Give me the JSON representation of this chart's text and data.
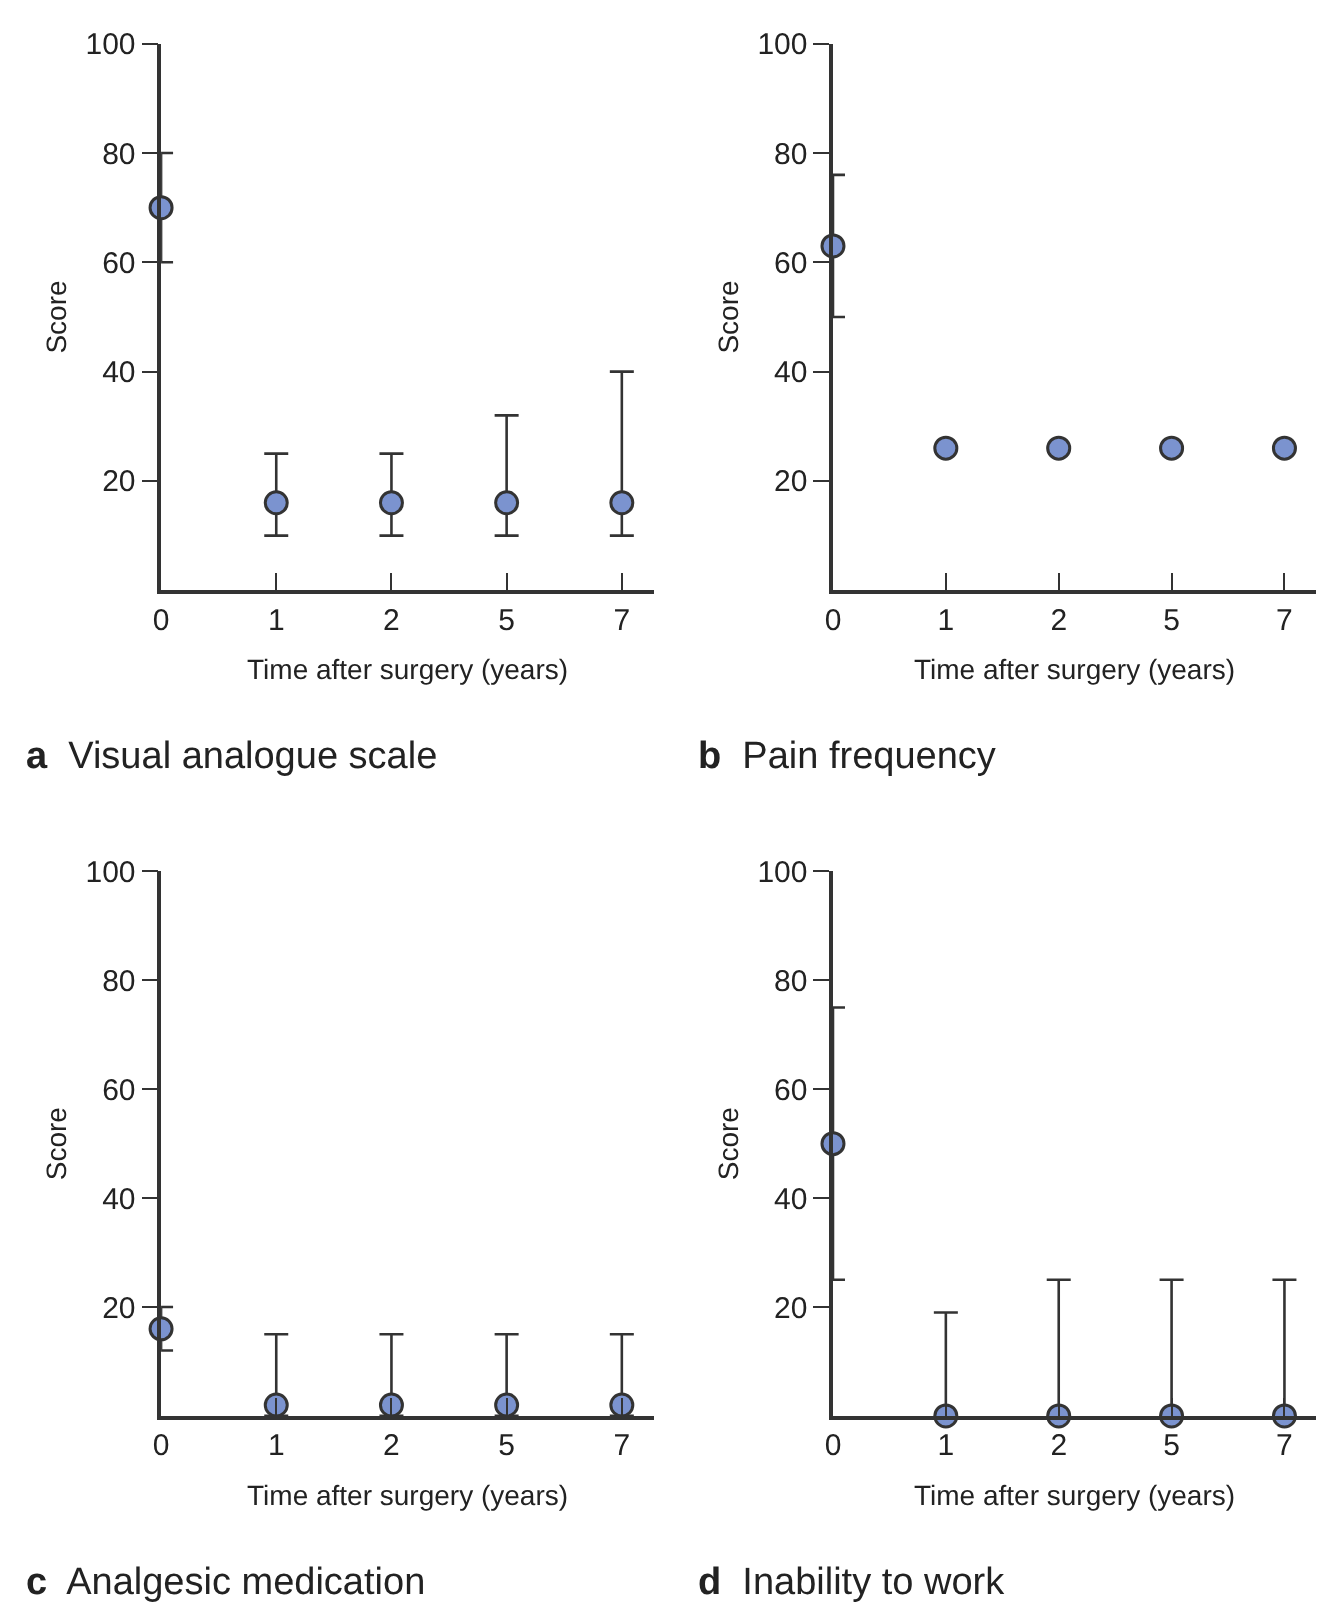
{
  "chart_data": [
    {
      "type": "scatter",
      "title": "a Visual analogue scale",
      "xlabel": "Time after surgery (years)",
      "ylabel": "Score",
      "categories": [
        "0",
        "1",
        "2",
        "5",
        "7"
      ],
      "ylim": [
        0,
        100
      ],
      "yticks": [
        20,
        40,
        60,
        80,
        100
      ],
      "marker": "circle",
      "series": [
        {
          "color": "#7b93cf",
          "values": [
            70,
            16,
            16,
            16,
            16
          ],
          "errors": [
            [
              60,
              80
            ],
            [
              10,
              25
            ],
            [
              10,
              25
            ],
            [
              10,
              32
            ],
            [
              10,
              40
            ]
          ]
        }
      ]
    },
    {
      "type": "scatter",
      "title": "b Pain frequency",
      "xlabel": "Time after surgery (years)",
      "ylabel": "Score",
      "categories": [
        "0",
        "1",
        "2",
        "5",
        "7"
      ],
      "ylim": [
        0,
        100
      ],
      "yticks": [
        20,
        40,
        60,
        80,
        100
      ],
      "marker": "circle",
      "series": [
        {
          "color": "#7b93cf",
          "values": [
            63,
            26,
            26,
            26,
            26
          ],
          "errors": [
            [
              50,
              76
            ],
            null,
            null,
            null,
            null
          ]
        }
      ]
    },
    {
      "type": "scatter",
      "title": "c Analgesic medication",
      "xlabel": "Time after surgery (years)",
      "ylabel": "Score",
      "categories": [
        "0",
        "1",
        "2",
        "5",
        "7"
      ],
      "ylim": [
        0,
        100
      ],
      "yticks": [
        20,
        40,
        60,
        80,
        100
      ],
      "marker": "circle",
      "series": [
        {
          "color": "#7b93cf",
          "values": [
            16,
            2,
            2,
            2,
            2
          ],
          "errors": [
            [
              12,
              20
            ],
            [
              0,
              15
            ],
            [
              0,
              15
            ],
            [
              0,
              15
            ],
            [
              0,
              15
            ]
          ]
        }
      ]
    },
    {
      "type": "scatter",
      "title": "d Inability to work",
      "xlabel": "Time after surgery (years)",
      "ylabel": "Score",
      "categories": [
        "0",
        "1",
        "2",
        "5",
        "7"
      ],
      "ylim": [
        0,
        100
      ],
      "yticks": [
        20,
        40,
        60,
        80,
        100
      ],
      "marker": "circle",
      "series": [
        {
          "color": "#7b93cf",
          "values": [
            50,
            0,
            0,
            0,
            0
          ],
          "errors": [
            [
              25,
              75
            ],
            [
              0,
              19
            ],
            [
              0,
              25
            ],
            [
              0,
              25
            ],
            [
              0,
              25
            ]
          ]
        }
      ]
    }
  ]
}
